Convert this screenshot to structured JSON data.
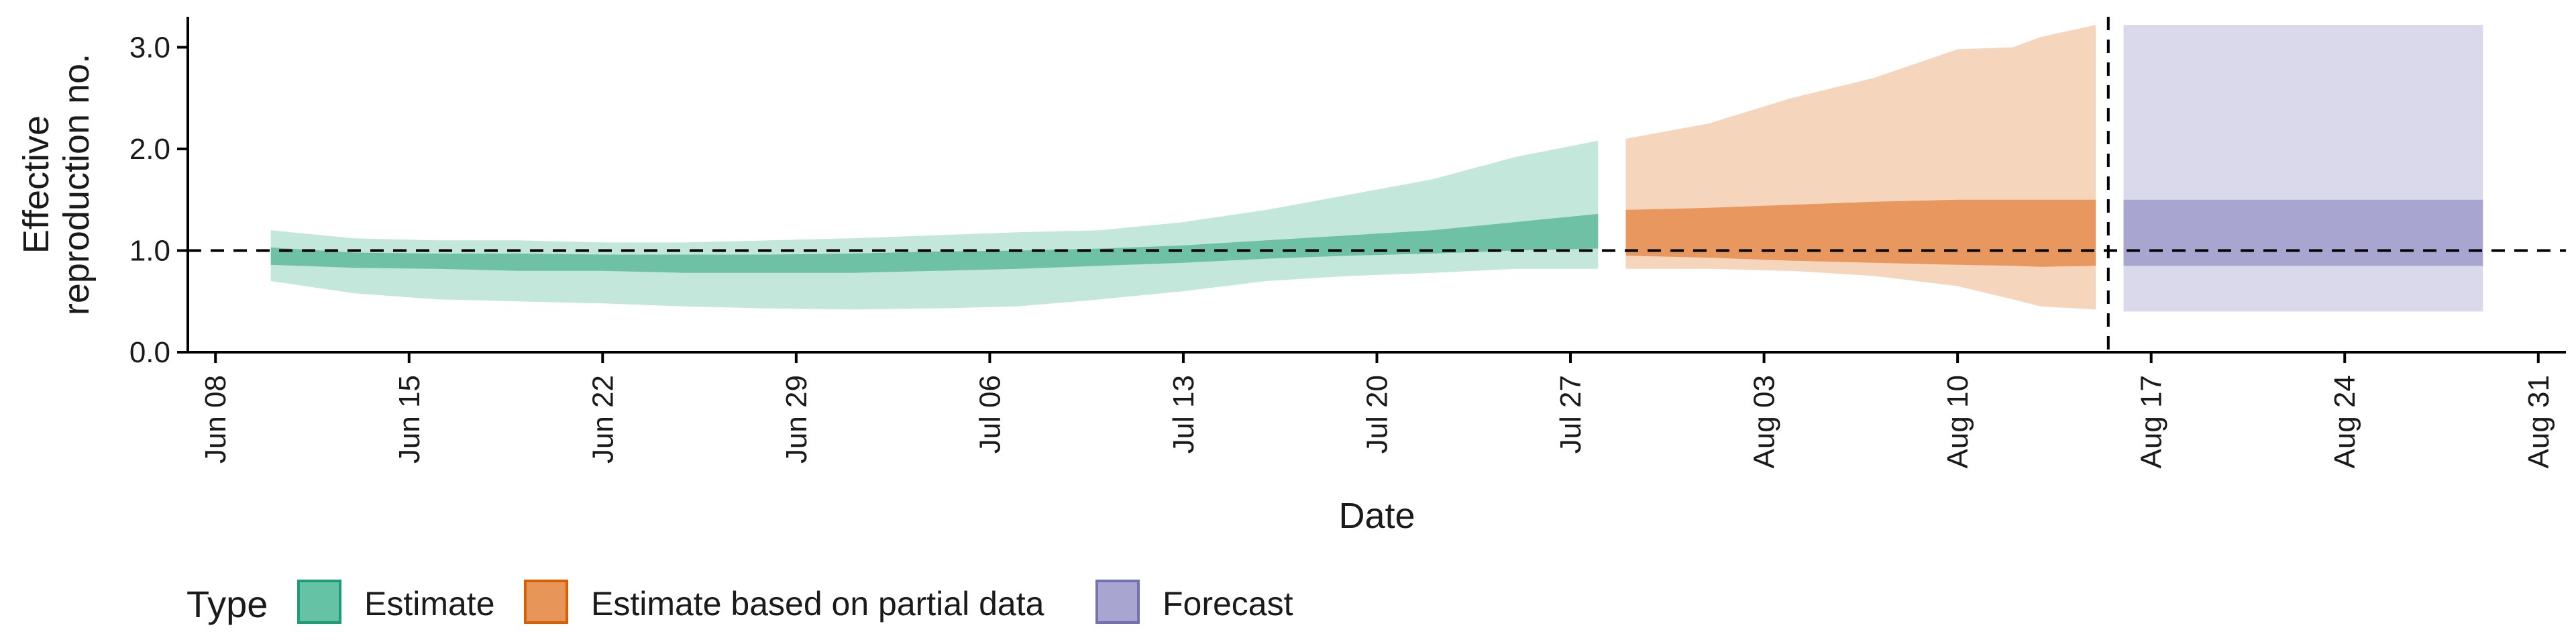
{
  "chart_data": {
    "type": "area",
    "xlabel": "Date",
    "ylabel": [
      "Effective",
      "reproduction no."
    ],
    "ylim": [
      0.0,
      3.3
    ],
    "yticks": [
      0.0,
      1.0,
      2.0,
      3.0
    ],
    "ytick_labels": [
      "0.0",
      "1.0",
      "2.0",
      "3.0"
    ],
    "xlim": [
      "2020-06-07",
      "2020-09-01"
    ],
    "xticks": [
      "2020-06-08",
      "2020-06-15",
      "2020-06-22",
      "2020-06-29",
      "2020-07-06",
      "2020-07-13",
      "2020-07-20",
      "2020-07-27",
      "2020-08-03",
      "2020-08-10",
      "2020-08-17",
      "2020-08-24",
      "2020-08-31"
    ],
    "xtick_labels": [
      "Jun 08",
      "Jun 15",
      "Jun 22",
      "Jun 29",
      "Jul 06",
      "Jul 13",
      "Jul 20",
      "Jul 27",
      "Aug 03",
      "Aug 10",
      "Aug 17",
      "Aug 24",
      "Aug 31"
    ],
    "reference_line_y": 1.0,
    "forecast_date": "2020-08-15",
    "grid": false,
    "legend": {
      "title": "Type",
      "placement": "bottom",
      "entries": [
        {
          "label": "Estimate",
          "fill": "#66c2a5",
          "stroke": "#1b9e77"
        },
        {
          "label": "Estimate based on partial data",
          "fill": "#e8955a",
          "stroke": "#d95f02"
        },
        {
          "label": "Forecast",
          "fill": "#a8a5d1",
          "stroke": "#7570b3"
        }
      ]
    },
    "colors": {
      "estimate_outer": "#c3e7da",
      "estimate_inner": "#6ec1a4",
      "partial_outer": "#f5d6bd",
      "partial_inner": "#e8975e",
      "forecast_outer": "#d9d9eb",
      "forecast_inner": "#a8a5d1"
    },
    "series": [
      {
        "type": "Estimate",
        "x": [
          "2020-06-10",
          "2020-06-13",
          "2020-06-16",
          "2020-06-19",
          "2020-06-22",
          "2020-06-25",
          "2020-06-28",
          "2020-07-01",
          "2020-07-04",
          "2020-07-07",
          "2020-07-10",
          "2020-07-13",
          "2020-07-16",
          "2020-07-19",
          "2020-07-22",
          "2020-07-25",
          "2020-07-28"
        ],
        "lower_90": [
          0.7,
          0.58,
          0.52,
          0.5,
          0.48,
          0.45,
          0.43,
          0.42,
          0.43,
          0.45,
          0.52,
          0.6,
          0.7,
          0.75,
          0.78,
          0.82,
          0.82
        ],
        "upper_90": [
          1.2,
          1.12,
          1.1,
          1.1,
          1.08,
          1.08,
          1.1,
          1.12,
          1.15,
          1.18,
          1.2,
          1.28,
          1.4,
          1.55,
          1.7,
          1.92,
          2.08
        ],
        "lower_50": [
          0.86,
          0.83,
          0.82,
          0.8,
          0.8,
          0.78,
          0.78,
          0.78,
          0.8,
          0.82,
          0.85,
          0.88,
          0.92,
          0.95,
          0.97,
          1.0,
          1.02
        ],
        "upper_50": [
          1.03,
          0.98,
          0.97,
          0.97,
          0.96,
          0.96,
          0.96,
          0.97,
          0.99,
          1.0,
          1.02,
          1.05,
          1.1,
          1.15,
          1.2,
          1.28,
          1.36
        ]
      },
      {
        "type": "Estimate based on partial data",
        "x": [
          "2020-07-29",
          "2020-08-01",
          "2020-08-04",
          "2020-08-07",
          "2020-08-10",
          "2020-08-12",
          "2020-08-13",
          "2020-08-15"
        ],
        "lower_90": [
          0.82,
          0.82,
          0.8,
          0.75,
          0.65,
          0.52,
          0.45,
          0.42
        ],
        "upper_90": [
          2.1,
          2.25,
          2.5,
          2.7,
          2.98,
          3.0,
          3.1,
          3.22
        ],
        "lower_50": [
          0.95,
          0.93,
          0.9,
          0.88,
          0.86,
          0.85,
          0.84,
          0.85
        ],
        "upper_50": [
          1.4,
          1.42,
          1.45,
          1.48,
          1.5,
          1.5,
          1.5,
          1.5
        ]
      },
      {
        "type": "Forecast",
        "x": [
          "2020-08-16",
          "2020-08-29"
        ],
        "lower_90": [
          0.4,
          0.4
        ],
        "upper_90": [
          3.22,
          3.22
        ],
        "lower_50": [
          0.85,
          0.85
        ],
        "upper_50": [
          1.5,
          1.5
        ]
      }
    ]
  }
}
